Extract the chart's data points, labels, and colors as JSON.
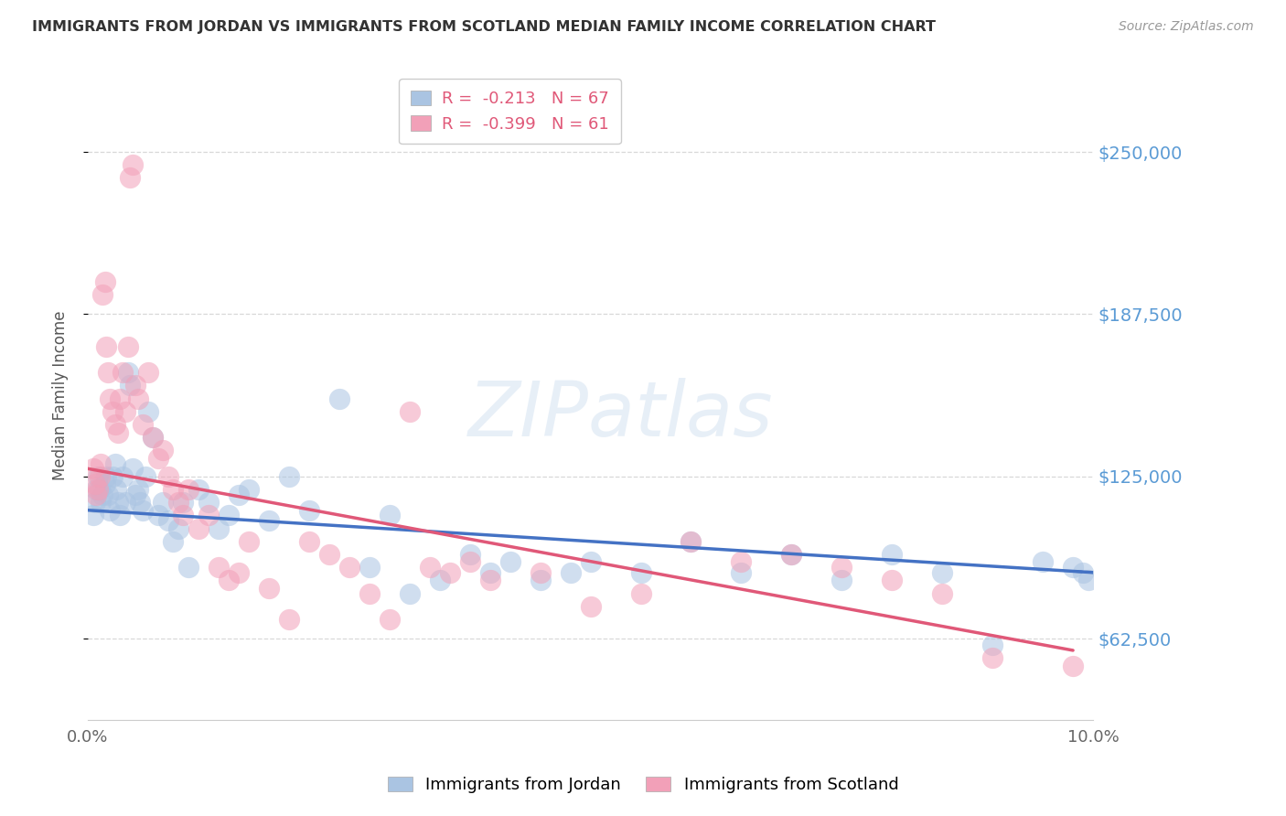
{
  "title": "IMMIGRANTS FROM JORDAN VS IMMIGRANTS FROM SCOTLAND MEDIAN FAMILY INCOME CORRELATION CHART",
  "source": "Source: ZipAtlas.com",
  "ylabel": "Median Family Income",
  "xlim": [
    0.0,
    10.0
  ],
  "ylim": [
    31250,
    281250
  ],
  "yticks": [
    62500,
    125000,
    187500,
    250000
  ],
  "ytick_labels": [
    "$62,500",
    "$125,000",
    "$187,500",
    "$250,000"
  ],
  "xticks": [
    0.0,
    1.0,
    2.0,
    3.0,
    4.0,
    5.0,
    6.0,
    7.0,
    8.0,
    9.0,
    10.0
  ],
  "xtick_labels_show": [
    "0.0%",
    "",
    "",
    "",
    "",
    "",
    "",
    "",
    "",
    "",
    "10.0%"
  ],
  "jordan_color": "#aac4e2",
  "scotland_color": "#f2a0b8",
  "jordan_line_color": "#4472c4",
  "scotland_line_color": "#e05878",
  "jordan_R": -0.213,
  "jordan_N": 67,
  "scotland_R": -0.399,
  "scotland_N": 61,
  "watermark": "ZIPatlas",
  "background_color": "#ffffff",
  "grid_color": "#d8d8d8",
  "ytick_color": "#5b9bd5",
  "jordan_x": [
    0.05,
    0.07,
    0.08,
    0.1,
    0.12,
    0.13,
    0.15,
    0.17,
    0.18,
    0.2,
    0.22,
    0.25,
    0.27,
    0.28,
    0.3,
    0.32,
    0.35,
    0.37,
    0.4,
    0.42,
    0.45,
    0.47,
    0.5,
    0.52,
    0.55,
    0.57,
    0.6,
    0.65,
    0.7,
    0.75,
    0.8,
    0.85,
    0.9,
    0.95,
    1.0,
    1.1,
    1.2,
    1.3,
    1.4,
    1.5,
    1.6,
    1.8,
    2.0,
    2.2,
    2.5,
    2.8,
    3.0,
    3.2,
    3.5,
    3.8,
    4.0,
    4.2,
    4.5,
    4.8,
    5.0,
    5.5,
    6.0,
    6.5,
    7.0,
    7.5,
    8.0,
    8.5,
    9.0,
    9.5,
    9.8,
    9.9,
    9.95
  ],
  "jordan_y": [
    110000,
    115000,
    120000,
    125000,
    120000,
    115000,
    118000,
    122000,
    125000,
    118000,
    112000,
    125000,
    130000,
    120000,
    115000,
    110000,
    125000,
    115000,
    165000,
    160000,
    128000,
    118000,
    120000,
    115000,
    112000,
    125000,
    150000,
    140000,
    110000,
    115000,
    108000,
    100000,
    105000,
    115000,
    90000,
    120000,
    115000,
    105000,
    110000,
    118000,
    120000,
    108000,
    125000,
    112000,
    155000,
    90000,
    110000,
    80000,
    85000,
    95000,
    88000,
    92000,
    85000,
    88000,
    92000,
    88000,
    100000,
    88000,
    95000,
    85000,
    95000,
    88000,
    60000,
    92000,
    90000,
    88000,
    85000
  ],
  "scotland_x": [
    0.05,
    0.07,
    0.08,
    0.1,
    0.12,
    0.13,
    0.15,
    0.17,
    0.18,
    0.2,
    0.22,
    0.25,
    0.27,
    0.3,
    0.32,
    0.35,
    0.37,
    0.4,
    0.42,
    0.45,
    0.47,
    0.5,
    0.55,
    0.6,
    0.65,
    0.7,
    0.75,
    0.8,
    0.85,
    0.9,
    0.95,
    1.0,
    1.1,
    1.2,
    1.3,
    1.4,
    1.5,
    1.6,
    1.8,
    2.0,
    2.2,
    2.4,
    2.6,
    2.8,
    3.0,
    3.2,
    3.4,
    3.6,
    3.8,
    4.0,
    4.5,
    5.0,
    5.5,
    6.0,
    6.5,
    7.0,
    7.5,
    8.0,
    8.5,
    9.0,
    9.8
  ],
  "scotland_y": [
    128000,
    122000,
    118000,
    120000,
    125000,
    130000,
    195000,
    200000,
    175000,
    165000,
    155000,
    150000,
    145000,
    142000,
    155000,
    165000,
    150000,
    175000,
    240000,
    245000,
    160000,
    155000,
    145000,
    165000,
    140000,
    132000,
    135000,
    125000,
    120000,
    115000,
    110000,
    120000,
    105000,
    110000,
    90000,
    85000,
    88000,
    100000,
    82000,
    70000,
    100000,
    95000,
    90000,
    80000,
    70000,
    150000,
    90000,
    88000,
    92000,
    85000,
    88000,
    75000,
    80000,
    100000,
    92000,
    95000,
    90000,
    85000,
    80000,
    55000,
    52000
  ]
}
